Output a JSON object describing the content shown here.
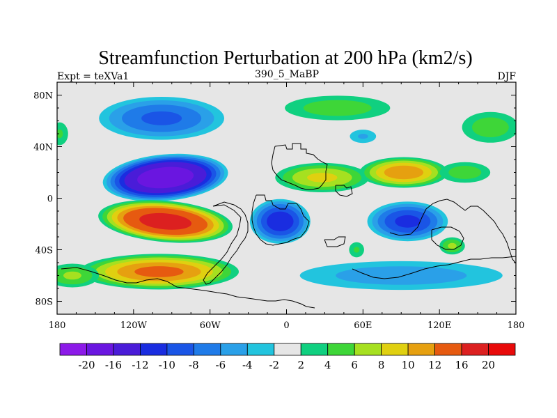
{
  "chart_data": {
    "type": "filled-contour-map",
    "title": "Streamfunction Perturbation at 200 hPa (km2/s)",
    "left_label": "Expt = teXVa1",
    "center_label": "390_5_MaBP",
    "right_label": "DJF",
    "xlim": [
      -180,
      180
    ],
    "ylim": [
      -90,
      90
    ],
    "x_ticks": [
      {
        "value": -180,
        "label": "180"
      },
      {
        "value": -120,
        "label": "120W"
      },
      {
        "value": -60,
        "label": "60W"
      },
      {
        "value": 0,
        "label": "0"
      },
      {
        "value": 60,
        "label": "60E"
      },
      {
        "value": 120,
        "label": "120E"
      },
      {
        "value": 180,
        "label": "180"
      }
    ],
    "y_ticks": [
      {
        "value": 80,
        "label": "80N"
      },
      {
        "value": 40,
        "label": "40N"
      },
      {
        "value": 0,
        "label": "0"
      },
      {
        "value": -40,
        "label": "40S"
      },
      {
        "value": -80,
        "label": "80S"
      }
    ],
    "colorbar": {
      "levels": [
        -20,
        -16,
        -12,
        -10,
        -8,
        -6,
        -4,
        -2,
        2,
        4,
        6,
        8,
        10,
        12,
        16,
        20
      ],
      "level_labels": [
        "-20",
        "-16",
        "-12",
        "-10",
        "-8",
        "-6",
        "-4",
        "-2",
        "2",
        "4",
        "6",
        "8",
        "10",
        "12",
        "16",
        "20"
      ],
      "colors": [
        "#8c1ae8",
        "#6a16e0",
        "#4a1cd8",
        "#1a2de0",
        "#1a55e6",
        "#1f7be8",
        "#2aa0e8",
        "#22c4de",
        "#e6e6e6",
        "#10d080",
        "#3ed638",
        "#a6e020",
        "#e0d010",
        "#e6a010",
        "#e65a10",
        "#dc2020",
        "#e80a0a"
      ]
    },
    "anomalies": [
      {
        "lon": -95,
        "lat": 16,
        "peak": -18,
        "rx": 52,
        "ry": 19,
        "rot": -5
      },
      {
        "lon": -95,
        "lat": -18,
        "peak": 17,
        "rx": 56,
        "ry": 17,
        "rot": 5
      },
      {
        "lon": -100,
        "lat": -57,
        "peak": 12,
        "rx": 68,
        "ry": 15,
        "rot": 0
      },
      {
        "lon": -168,
        "lat": -60,
        "peak": 6,
        "rx": 25,
        "ry": 11,
        "rot": 0
      },
      {
        "lon": -98,
        "lat": 62,
        "peak": -8,
        "rx": 56,
        "ry": 19,
        "rot": 0
      },
      {
        "lon": -5,
        "lat": -18,
        "peak": -11,
        "rx": 26,
        "ry": 19,
        "rot": 0
      },
      {
        "lon": 40,
        "lat": 70,
        "peak": 5,
        "rx": 52,
        "ry": 12,
        "rot": 0
      },
      {
        "lon": 28,
        "lat": 16,
        "peak": 8,
        "rx": 42,
        "ry": 13,
        "rot": 0
      },
      {
        "lon": 92,
        "lat": 20,
        "peak": 11,
        "rx": 38,
        "ry": 13,
        "rot": 0
      },
      {
        "lon": 140,
        "lat": 20,
        "peak": 5,
        "rx": 25,
        "ry": 10,
        "rot": 0
      },
      {
        "lon": 95,
        "lat": -18,
        "peak": -10,
        "rx": 35,
        "ry": 17,
        "rot": 0
      },
      {
        "lon": 90,
        "lat": -60,
        "peak": -5,
        "rx": 100,
        "ry": 14,
        "rot": 0
      },
      {
        "lon": 160,
        "lat": 55,
        "peak": 5,
        "rx": 28,
        "ry": 15,
        "rot": 0
      },
      {
        "lon": 130,
        "lat": -37,
        "peak": 6,
        "rx": 12,
        "ry": 8,
        "rot": 0
      },
      {
        "lon": -178,
        "lat": 50,
        "peak": 4,
        "rx": 9,
        "ry": 12,
        "rot": 0
      },
      {
        "lon": 55,
        "lat": -40,
        "peak": 4,
        "rx": 8,
        "ry": 8,
        "rot": 0
      },
      {
        "lon": 60,
        "lat": 48,
        "peak": -4,
        "rx": 14,
        "ry": 7,
        "rot": 0
      }
    ]
  }
}
